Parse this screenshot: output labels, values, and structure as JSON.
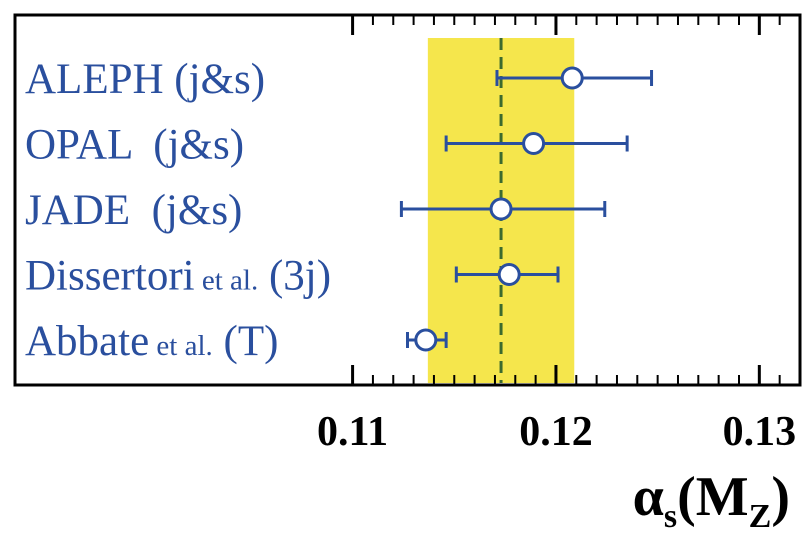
{
  "chart_data": {
    "type": "forest",
    "categories": [
      [
        "ALEPH (j&s)"
      ],
      [
        "OPAL  (j&s)"
      ],
      [
        "JADE  (j&s)"
      ],
      [
        "Dissertori",
        " et al.",
        " (3j)"
      ],
      [
        "Abbate",
        " et al.",
        " (T)"
      ]
    ],
    "values": [
      0.1208,
      0.1189,
      0.1173,
      0.1177,
      0.1136
    ],
    "lower": [
      0.1171,
      0.1146,
      0.1124,
      0.1151,
      0.1127
    ],
    "upper": [
      0.1247,
      0.1235,
      0.1224,
      0.1201,
      0.1146
    ],
    "color": "#2a4f9e",
    "band": [
      0.1137,
      0.1209
    ],
    "band_color": "#f5e64c",
    "reference": 0.1173,
    "reference_color": "#3c6a2e",
    "xlim": [
      0.0934,
      0.132
    ],
    "xticks": [
      0.11,
      0.12,
      0.13
    ],
    "xminorticks": [
      0.111,
      0.112,
      0.113,
      0.114,
      0.115,
      0.116,
      0.117,
      0.118,
      0.119,
      0.121,
      0.122,
      0.123,
      0.124,
      0.125,
      0.126,
      0.127,
      0.128,
      0.129,
      0.131
    ],
    "x_label": [
      "α",
      "s",
      "(M",
      "Z",
      ")"
    ]
  }
}
